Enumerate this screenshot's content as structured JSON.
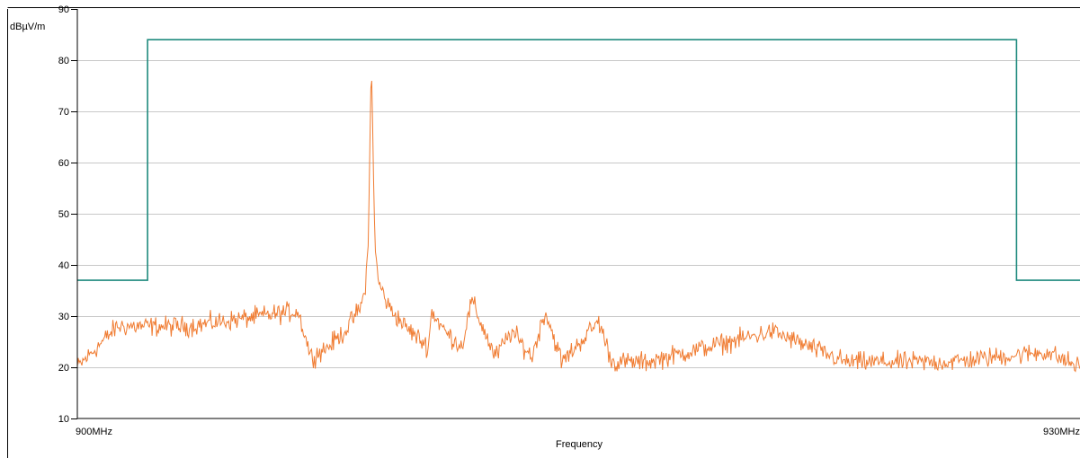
{
  "chart_data": {
    "type": "line",
    "title": "",
    "xlabel": "Frequency",
    "ylabel": "dBµV/m",
    "xlim": [
      900,
      930
    ],
    "ylim": [
      10,
      90
    ],
    "x_unit": "MHz",
    "x_tick_labels": [
      {
        "x": 900,
        "label": "900MHz"
      },
      {
        "x": 930,
        "label": "930MHz"
      }
    ],
    "y_ticks": [
      10,
      20,
      30,
      40,
      50,
      60,
      70,
      80,
      90
    ],
    "grid": {
      "horizontal": true,
      "vertical": false
    },
    "colors": {
      "limit": "#1f8a7e",
      "measurement": "#f07c32",
      "grid": "#c8c8c8",
      "axis": "#000000"
    },
    "series": [
      {
        "key": "limit",
        "x": [
          900,
          902.1,
          902.1,
          928.1,
          928.1,
          930
        ],
        "y": [
          37,
          37,
          84,
          84,
          37,
          37
        ]
      },
      {
        "key": "measurement",
        "baseline_dbuv": 20,
        "noise_dbuv": 1.2,
        "x": [
          900,
          901.2,
          903.3,
          906.6,
          907.0,
          907.5,
          908.0,
          908.3,
          908.5,
          908.6,
          908.7,
          908.8,
          908.9,
          909.0,
          909.3,
          909.8,
          910.5,
          910.6,
          911.0,
          911.5,
          911.8,
          912.5,
          913.0,
          913.6,
          914.0,
          914.5,
          915.6,
          916.0,
          917.0,
          920.8,
          923.0,
          926.0,
          929.0,
          930
        ],
        "y": [
          20,
          28,
          28,
          31,
          22,
          24,
          27,
          30,
          32,
          35,
          43,
          81,
          44,
          37,
          32,
          28,
          24,
          31,
          27,
          24,
          33,
          22,
          27,
          22,
          31,
          21,
          29,
          21,
          21,
          27,
          21,
          21,
          23,
          20
        ]
      }
    ]
  }
}
